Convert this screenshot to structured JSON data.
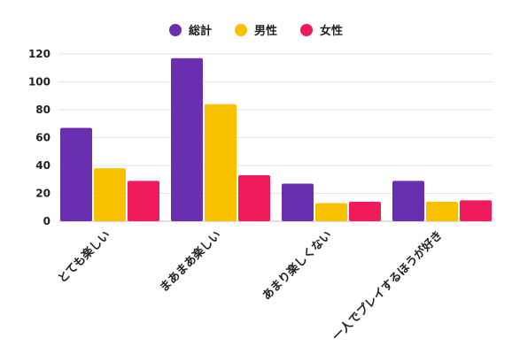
{
  "chart_data": {
    "type": "bar",
    "categories": [
      "とても楽しい",
      "まあまあ楽しい",
      "あまり楽しくない",
      "一人でプレイするほうが好き"
    ],
    "series": [
      {
        "name": "総計",
        "color": "#6a2fb0",
        "values": [
          67,
          117,
          27,
          29
        ]
      },
      {
        "name": "男性",
        "color": "#f8c100",
        "values": [
          38,
          84,
          13,
          14
        ]
      },
      {
        "name": "女性",
        "color": "#ef1b5a",
        "values": [
          29,
          33,
          14,
          15
        ]
      }
    ],
    "ylim": [
      0,
      120
    ],
    "yticks": [
      "0",
      "20",
      "40",
      "60",
      "80",
      "100",
      "120"
    ],
    "grid": true,
    "legend_position": "top-center"
  }
}
